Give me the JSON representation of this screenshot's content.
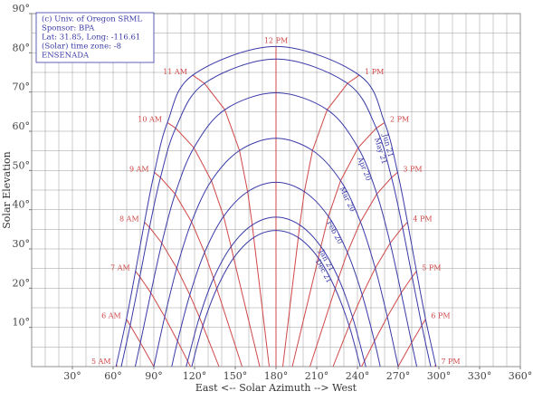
{
  "chart_data": {
    "type": "line",
    "xlabel": "East <-- Solar Azimuth --> West",
    "ylabel": "Solar Elevation",
    "annotations": [
      "(c) Univ. of Oregon SRML",
      "Sponsor: BPA",
      "Lat: 31.85, Long: -116.61",
      "(Solar) time zone: -8",
      "ENSENADA"
    ],
    "xlim": [
      0,
      360
    ],
    "ylim": [
      0,
      90
    ],
    "xticks": [
      {
        "value": 30,
        "label": "30°"
      },
      {
        "value": 60,
        "label": "60°"
      },
      {
        "value": 90,
        "label": "90°"
      },
      {
        "value": 120,
        "label": "120°"
      },
      {
        "value": 150,
        "label": "150°"
      },
      {
        "value": 180,
        "label": "180°"
      },
      {
        "value": 210,
        "label": "210°"
      },
      {
        "value": 240,
        "label": "240°"
      },
      {
        "value": 270,
        "label": "270°"
      },
      {
        "value": 300,
        "label": "300°"
      },
      {
        "value": 330,
        "label": "330°"
      },
      {
        "value": 360,
        "label": "360°"
      }
    ],
    "yticks": [
      {
        "value": 10,
        "label": "10°"
      },
      {
        "value": 20,
        "label": "20°"
      },
      {
        "value": 30,
        "label": "30°"
      },
      {
        "value": 40,
        "label": "40°"
      },
      {
        "value": 50,
        "label": "50°"
      },
      {
        "value": 60,
        "label": "60°"
      },
      {
        "value": 70,
        "label": "70°"
      },
      {
        "value": 80,
        "label": "80°"
      },
      {
        "value": 90,
        "label": "90°"
      }
    ],
    "grid": true,
    "xgrid": [
      10,
      20,
      30,
      40,
      50,
      60,
      70,
      80,
      90,
      100,
      110,
      120,
      130,
      140,
      150,
      160,
      170,
      180,
      190,
      200,
      210,
      220,
      230,
      240,
      250,
      260,
      270,
      280,
      290,
      300,
      310,
      320,
      330,
      340,
      350
    ],
    "ygrid": [
      5,
      10,
      15,
      20,
      25,
      30,
      35,
      40,
      45,
      50,
      55,
      60,
      65,
      70,
      75,
      80,
      85
    ],
    "series": [
      {
        "name": "Jun 21",
        "color": "#3a3aa8",
        "x": [
          62.1,
          69.8,
          76.5,
          83.1,
          90.4,
          100.0,
          118.6,
          180,
          241.4,
          260.0,
          269.6,
          276.9,
          283.5,
          290.2,
          297.9
        ],
        "values": [
          0,
          12.1,
          24.3,
          36.8,
          49.5,
          62.2,
          74.3,
          81.6,
          74.3,
          62.2,
          49.5,
          36.8,
          24.3,
          12.1,
          0
        ]
      },
      {
        "name": "May 21",
        "color": "#3a3aa8",
        "x": [
          66.0,
          72.6,
          79.7,
          86.8,
          94.9,
          106.1,
          127.3,
          180,
          232.7,
          253.9,
          265.1,
          273.2,
          280.3,
          287.4,
          294.0
        ],
        "values": [
          0,
          10.5,
          22.9,
          35.5,
          48.2,
          60.8,
          72.2,
          78.4,
          72.2,
          60.8,
          48.2,
          35.5,
          22.9,
          10.5,
          0
        ]
      },
      {
        "name": "Apr 20",
        "color": "#3a3aa8",
        "x": [
          76.3,
          80.1,
          87.8,
          95.9,
          105.7,
          119.5,
          142.3,
          180,
          217.7,
          240.5,
          254.3,
          264.1,
          272.2,
          279.9,
          283.7
        ],
        "values": [
          0,
          6.1,
          18.8,
          31.5,
          44.0,
          55.8,
          65.5,
          69.8,
          65.5,
          55.8,
          44.0,
          31.5,
          18.8,
          6.1,
          0
        ]
      },
      {
        "name": "Mar 20",
        "color": "#3a3aa8",
        "x": [
          90,
          98.0,
          106.9,
          117.8,
          132.4,
          153.1,
          180,
          206.9,
          227.6,
          242.2,
          253.1,
          262.0,
          270
        ],
        "values": [
          0,
          12.7,
          25.1,
          36.9,
          47.4,
          55.1,
          58.2,
          55.1,
          47.4,
          36.9,
          25.1,
          12.7,
          0
        ]
      },
      {
        "name": "Feb 20",
        "color": "#3a3aa8",
        "x": [
          103.2,
          107.5,
          116.5,
          127.4,
          141.4,
          159.1,
          180,
          200.9,
          218.6,
          232.6,
          243.5,
          252.5,
          256.8
        ],
        "values": [
          0,
          6.5,
          18.3,
          29.1,
          38.3,
          44.6,
          47.0,
          44.6,
          38.3,
          29.1,
          18.3,
          6.5,
          0
        ]
      },
      {
        "name": "Jan 21",
        "color": "#3a3aa8",
        "x": [
          113.9,
          114.9,
          123.6,
          134.0,
          146.9,
          162.5,
          180,
          197.5,
          213.1,
          226.0,
          236.4,
          245.1,
          246.1
        ],
        "values": [
          0,
          1.4,
          12.6,
          22.5,
          30.6,
          36.1,
          38.1,
          36.1,
          30.6,
          22.5,
          12.6,
          1.4,
          0
        ]
      },
      {
        "name": "Dec 21",
        "color": "#3a3aa8",
        "x": [
          117.9,
          126.1,
          136.4,
          148.8,
          163.6,
          180,
          196.4,
          211.2,
          223.6,
          233.9,
          242.1
        ],
        "values": [
          0,
          10.4,
          19.9,
          27.7,
          32.9,
          34.7,
          32.9,
          27.7,
          19.9,
          10.4,
          0
        ]
      }
    ],
    "hour_lines": [
      {
        "name": "5 AM",
        "color": "#d04848",
        "x": [
          62.4,
          62.9
        ],
        "values": [
          0.5,
          0
        ]
      },
      {
        "name": "6 AM",
        "color": "#d04848",
        "x": [
          69.8,
          72.6,
          80.1,
          90
        ],
        "values": [
          12.1,
          10.5,
          6.1,
          0
        ]
      },
      {
        "name": "7 AM",
        "color": "#d04848",
        "x": [
          76.5,
          79.7,
          87.8,
          98.0,
          107.5,
          114.9,
          117
        ],
        "values": [
          24.3,
          22.9,
          18.8,
          12.7,
          6.5,
          1.4,
          0
        ]
      },
      {
        "name": "8 AM",
        "color": "#d04848",
        "x": [
          83.1,
          86.8,
          95.9,
          106.9,
          116.5,
          123.6,
          126.1,
          138
        ],
        "values": [
          36.8,
          35.5,
          31.5,
          25.1,
          18.3,
          12.6,
          10.4,
          0
        ]
      },
      {
        "name": "9 AM",
        "color": "#d04848",
        "x": [
          90.4,
          94.9,
          105.7,
          117.8,
          127.4,
          134.0,
          136.4,
          155
        ],
        "values": [
          49.5,
          48.2,
          44.0,
          36.9,
          29.1,
          22.5,
          19.9,
          0
        ]
      },
      {
        "name": "10 AM",
        "color": "#d04848",
        "x": [
          100.0,
          106.1,
          119.5,
          132.4,
          141.4,
          146.9,
          148.8,
          168
        ],
        "values": [
          62.2,
          60.8,
          55.8,
          47.4,
          38.3,
          30.6,
          27.7,
          0
        ]
      },
      {
        "name": "11 AM",
        "color": "#d04848",
        "x": [
          118.6,
          127.3,
          142.3,
          153.1,
          159.1,
          162.5,
          163.6,
          175
        ],
        "values": [
          74.3,
          72.2,
          65.5,
          55.1,
          44.6,
          36.1,
          32.9,
          0
        ]
      },
      {
        "name": "12 PM",
        "color": "#d04848",
        "x": [
          180,
          180
        ],
        "values": [
          81.6,
          0
        ]
      },
      {
        "name": "1 PM",
        "color": "#d04848",
        "x": [
          241.4,
          232.7,
          217.7,
          206.9,
          200.9,
          197.5,
          196.4,
          185
        ],
        "values": [
          74.3,
          72.2,
          65.5,
          55.1,
          44.6,
          36.1,
          32.9,
          0
        ]
      },
      {
        "name": "2 PM",
        "color": "#d04848",
        "x": [
          260.0,
          253.9,
          240.5,
          227.6,
          218.6,
          213.1,
          211.2,
          192
        ],
        "values": [
          62.2,
          60.8,
          55.8,
          47.4,
          38.3,
          30.6,
          27.7,
          0
        ]
      },
      {
        "name": "3 PM",
        "color": "#d04848",
        "x": [
          269.6,
          265.1,
          254.3,
          242.2,
          232.6,
          226.0,
          223.6,
          205
        ],
        "values": [
          49.5,
          48.2,
          44.0,
          36.9,
          29.1,
          22.5,
          19.9,
          0
        ]
      },
      {
        "name": "4 PM",
        "color": "#d04848",
        "x": [
          276.9,
          273.2,
          264.1,
          253.1,
          243.5,
          236.4,
          233.9,
          222
        ],
        "values": [
          36.8,
          35.5,
          31.5,
          25.1,
          18.3,
          12.6,
          10.4,
          0
        ]
      },
      {
        "name": "5 PM",
        "color": "#d04848",
        "x": [
          283.5,
          280.3,
          272.2,
          262.0,
          252.5,
          245.1,
          243
        ],
        "values": [
          24.3,
          22.9,
          18.8,
          12.7,
          6.5,
          1.4,
          0
        ]
      },
      {
        "name": "6 PM",
        "color": "#d04848",
        "x": [
          290.2,
          287.4,
          279.9,
          270
        ],
        "values": [
          12.1,
          10.5,
          6.1,
          0
        ]
      },
      {
        "name": "7 PM",
        "color": "#d04848",
        "x": [
          297.6,
          297.1
        ],
        "values": [
          0.5,
          0
        ]
      }
    ]
  }
}
